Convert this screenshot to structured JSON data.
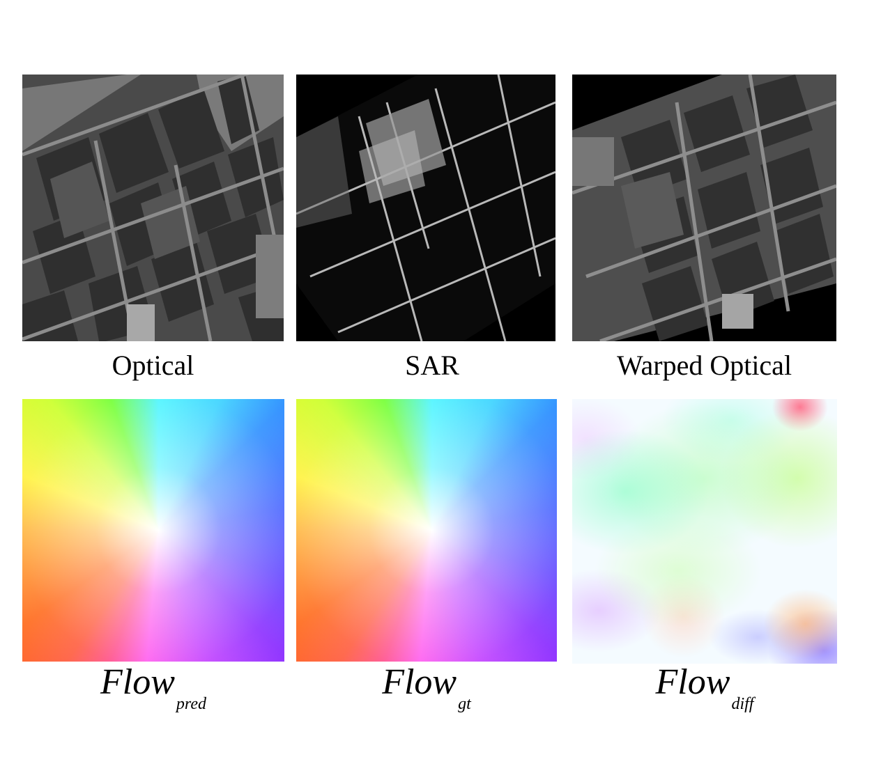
{
  "figure": {
    "top_row": {
      "optical": {
        "caption": "Optical"
      },
      "sar": {
        "caption": "SAR"
      },
      "warped": {
        "caption": "Warped Optical"
      }
    },
    "bottom_row": {
      "flow_pred": {
        "base": "Flow",
        "sub": "pred"
      },
      "flow_gt": {
        "base": "Flow",
        "sub": "gt"
      },
      "flow_diff": {
        "base": "Flow",
        "sub": "diff"
      }
    }
  },
  "colors": {
    "sar_background": "#000000",
    "optical_field": "#3a3a3a",
    "optical_road": "#8c8c8c",
    "sar_road": "#d8d8d8"
  }
}
